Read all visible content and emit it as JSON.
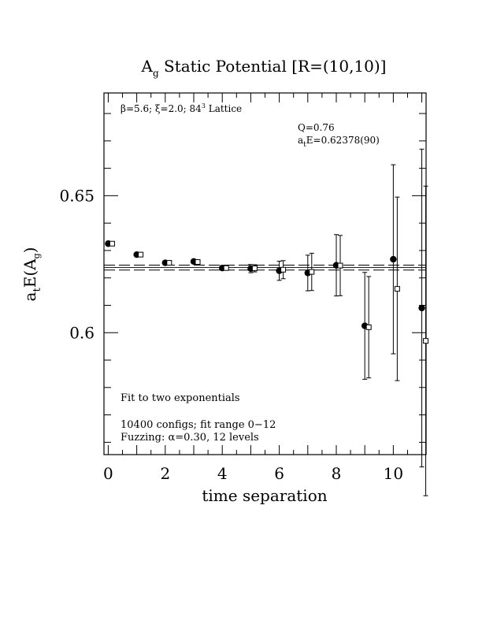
{
  "chart_data": {
    "type": "scatter",
    "title_main": "A",
    "title_sub": "g",
    "title_rest": " Static Potential [R=(10,10)]",
    "ylabel_main": "a",
    "ylabel_t": "t",
    "ylabel_mid": "E(A",
    "ylabel_g": "g",
    "ylabel_end": ")",
    "xlabel": "time separation",
    "xlim": [
      -0.15,
      11.15
    ],
    "ylim": [
      0.5555,
      0.6875
    ],
    "xticks": [
      "0",
      "2",
      "4",
      "6",
      "8",
      "10"
    ],
    "yticks": [
      "0.6",
      "0.65"
    ],
    "xtick_values": [
      0,
      2,
      4,
      6,
      8,
      10
    ],
    "ytick_values": [
      0.6,
      0.65
    ],
    "annotations": {
      "lattice_beta": "β=5.6; ξ=2.0; 84",
      "lattice_exp": "3",
      "lattice_rest": " Lattice",
      "q": "Q=0.76",
      "fit_a": "a",
      "fit_t": "t",
      "fit_rest": "E=0.62378(90)",
      "fit_type": "Fit to two exponentials",
      "configs": "10400 configs; fit range 0−12",
      "fuzzing": "Fuzzing: α=0.30, 12 levels"
    },
    "fit": {
      "value": 0.62378,
      "error": 0.0009
    },
    "series": [
      {
        "marker": "filled-circle",
        "x": [
          0,
          1,
          2,
          3,
          4,
          5,
          6,
          7,
          8,
          9,
          10,
          11
        ],
        "y": [
          0.6325,
          0.6285,
          0.6255,
          0.626,
          0.6236,
          0.6234,
          0.6226,
          0.6218,
          0.6246,
          0.6025,
          0.6268,
          0.609
        ],
        "err": [
          0.0003,
          0.0004,
          0.0005,
          0.0006,
          0.0006,
          0.0015,
          0.0035,
          0.0065,
          0.0112,
          0.0195,
          0.0345,
          0.058
        ]
      },
      {
        "marker": "open-square",
        "x": [
          0,
          1,
          2,
          3,
          4,
          5,
          6,
          7,
          8,
          9,
          10,
          11
        ],
        "y": [
          0.6325,
          0.6285,
          0.6255,
          0.6258,
          0.6236,
          0.6235,
          0.623,
          0.6222,
          0.6245,
          0.602,
          0.616,
          0.597
        ],
        "err": [
          0.0003,
          0.0004,
          0.0005,
          0.0005,
          0.0006,
          0.0013,
          0.0033,
          0.0068,
          0.011,
          0.0185,
          0.0335,
          0.0565
        ]
      }
    ]
  }
}
